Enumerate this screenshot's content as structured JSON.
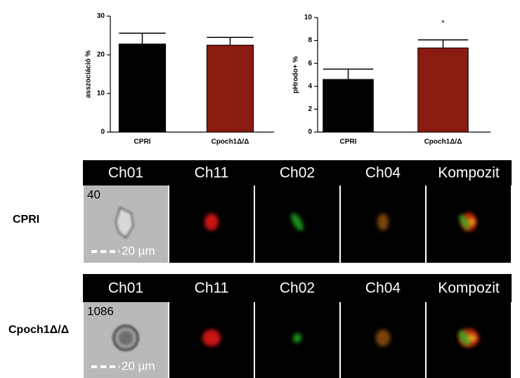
{
  "chart_data": [
    {
      "type": "bar",
      "ylabel": "asszociáció %",
      "categories": [
        "CPRI",
        "Cpoch1Δ/Δ"
      ],
      "values": [
        22.8,
        22.5
      ],
      "errors": [
        2.8,
        2.0
      ],
      "colors": [
        "#000000",
        "#8b1a10"
      ],
      "ylim": [
        0,
        30
      ],
      "yticks": [
        0,
        10,
        20,
        30
      ]
    },
    {
      "type": "bar",
      "ylabel": "pHrodo+ %",
      "categories": [
        "CPRI",
        "Cpoch1Δ/Δ"
      ],
      "values": [
        4.6,
        7.35
      ],
      "errors": [
        0.9,
        0.7
      ],
      "colors": [
        "#000000",
        "#8b1a10"
      ],
      "ylim": [
        0,
        10
      ],
      "yticks": [
        0,
        2,
        4,
        6,
        8,
        10
      ],
      "annotation": "*"
    }
  ],
  "panels": {
    "channels": [
      "Ch01",
      "Ch11",
      "Ch02",
      "Ch04",
      "Kompozit"
    ],
    "rows": [
      {
        "label": "CPRI",
        "object_id": "40",
        "scale": "20 µm"
      },
      {
        "label": "Cpoch1Δ/Δ",
        "object_id": "1086",
        "scale": "20 µm"
      }
    ]
  }
}
